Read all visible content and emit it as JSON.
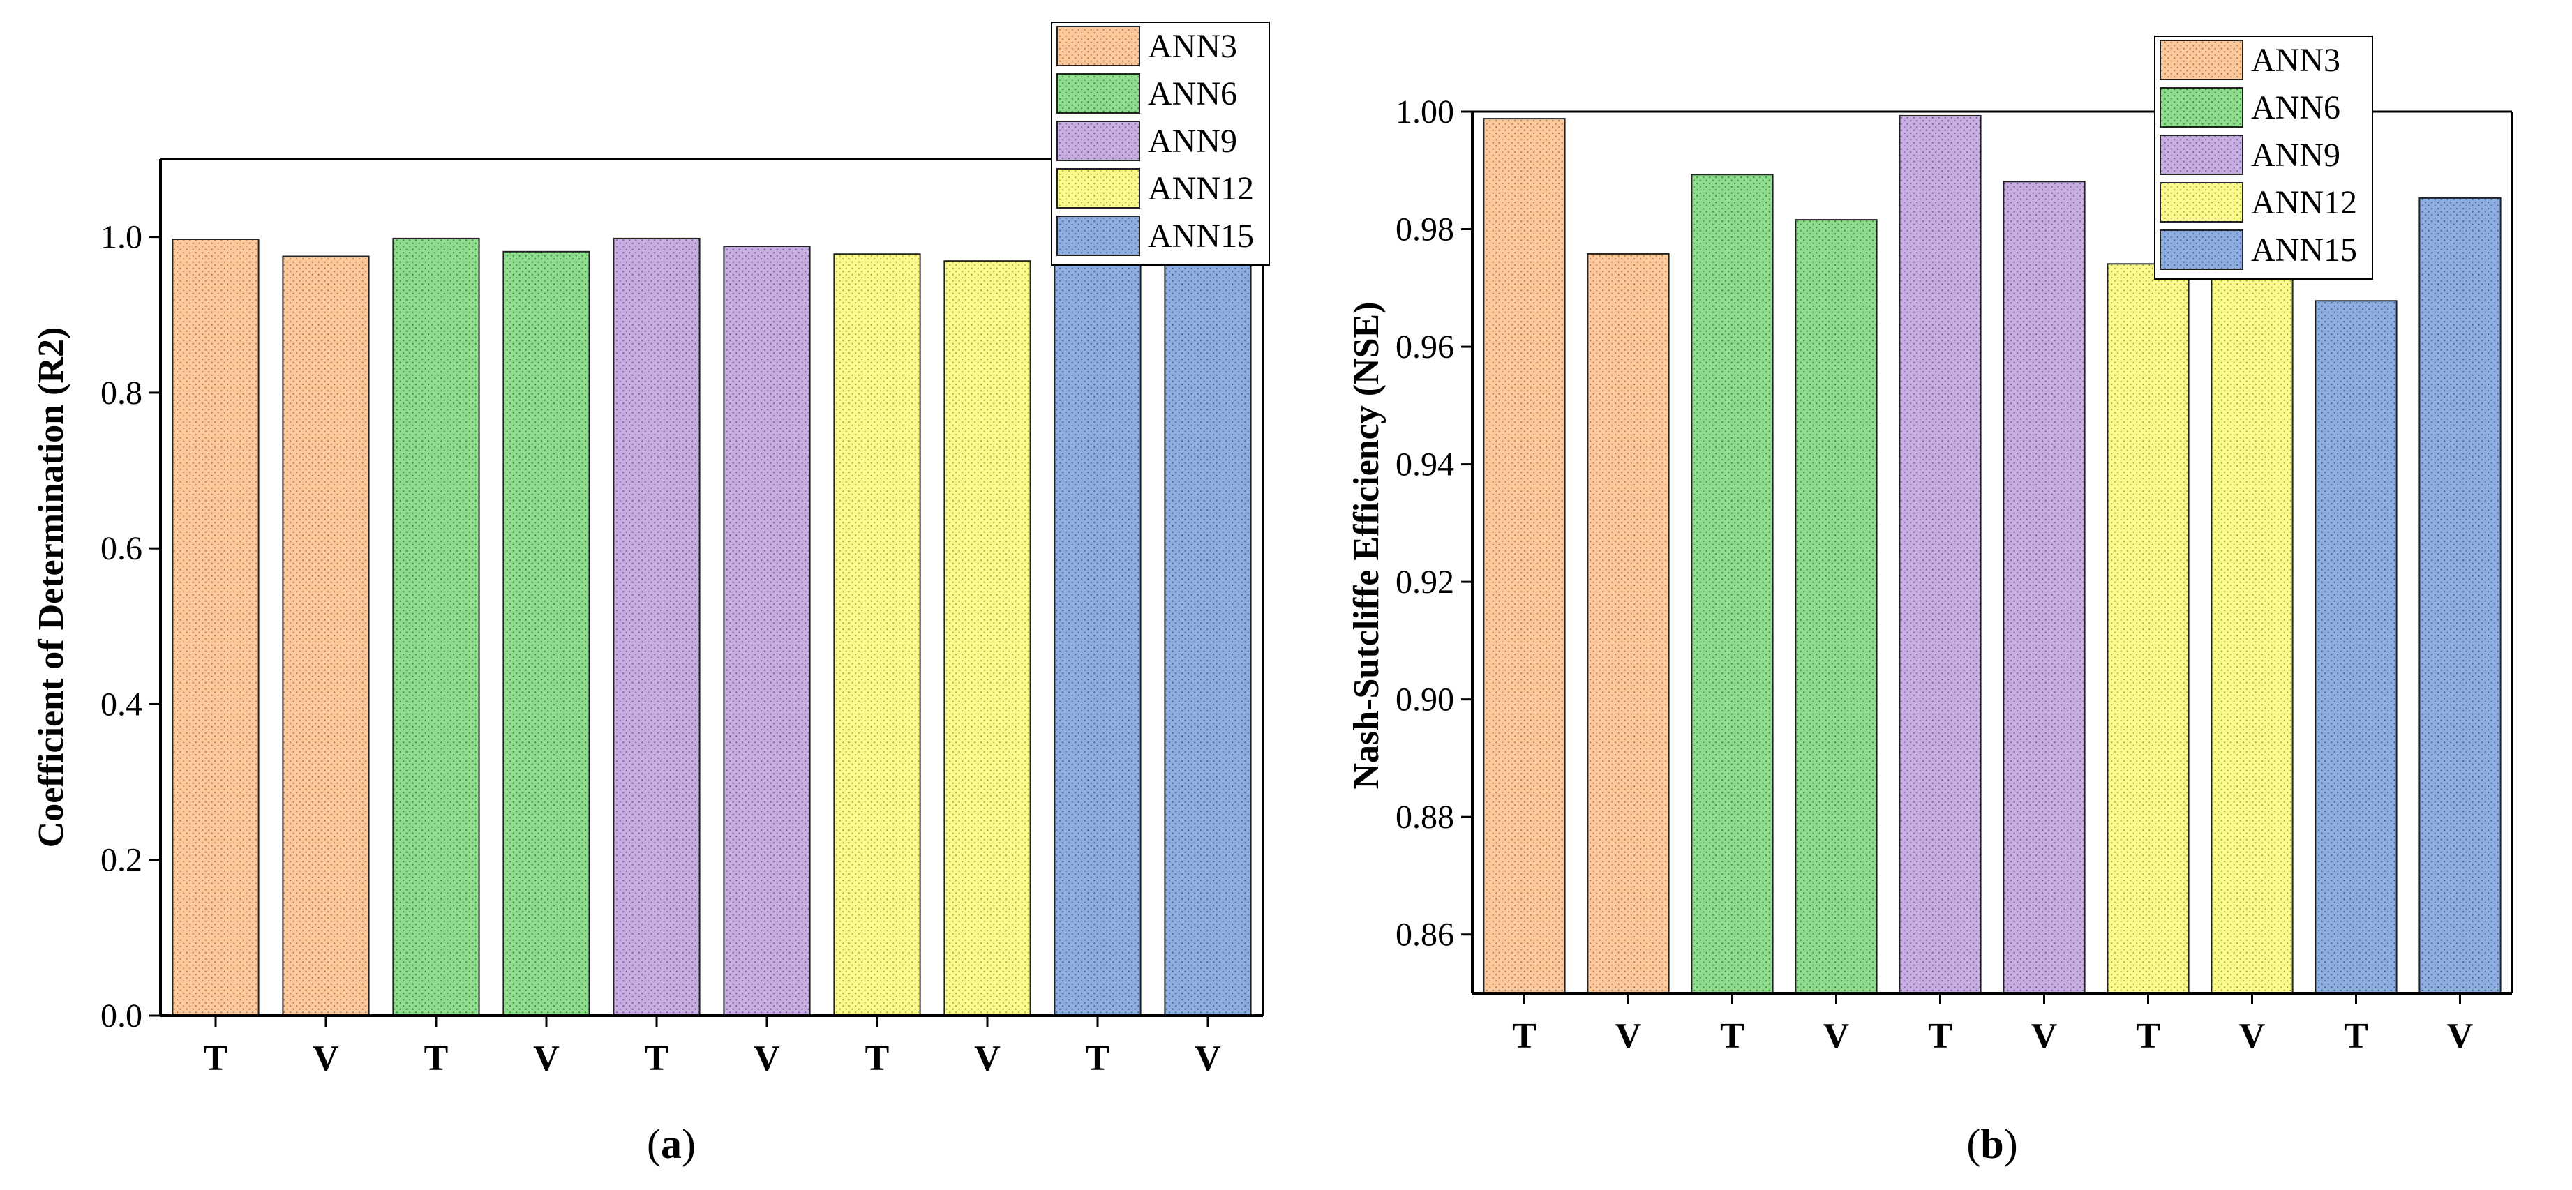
{
  "patterns": {
    "ANN3": {
      "fill": "#fbc99c",
      "dot": "#b07850"
    },
    "ANN6": {
      "fill": "#8fdc8f",
      "dot": "#3b8a3b"
    },
    "ANN9": {
      "fill": "#c6aee0",
      "dot": "#7a5c9c"
    },
    "ANN12": {
      "fill": "#fbfb8c",
      "dot": "#a8a840"
    },
    "ANN15": {
      "fill": "#8eaee0",
      "dot": "#44609c"
    }
  },
  "legend": [
    "ANN3",
    "ANN6",
    "ANN9",
    "ANN12",
    "ANN15"
  ],
  "chart_data": [
    {
      "type": "bar",
      "panel": "a",
      "caption_letter": "a",
      "categories": [
        "T",
        "V",
        "T",
        "V",
        "T",
        "V",
        "T",
        "V",
        "T",
        "V"
      ],
      "groups": [
        "ANN3",
        "ANN3",
        "ANN6",
        "ANN6",
        "ANN9",
        "ANN9",
        "ANN12",
        "ANN12",
        "ANN15",
        "ANN15"
      ],
      "values": [
        0.997,
        0.975,
        0.998,
        0.981,
        0.998,
        0.988,
        0.978,
        0.969,
        0.979,
        0.969
      ],
      "ylabel": "Coefficient of Determination (R2)",
      "xlabel": "",
      "ylim": [
        0,
        1.1
      ],
      "yticks": [
        "0.0",
        "0.2",
        "0.4",
        "0.6",
        "0.8",
        "1.0"
      ],
      "ytick_values": [
        0,
        0.2,
        0.4,
        0.6,
        0.8,
        1.0
      ],
      "legend_position": "top-right"
    },
    {
      "type": "bar",
      "panel": "b",
      "caption_letter": "b",
      "categories": [
        "T",
        "V",
        "T",
        "V",
        "T",
        "V",
        "T",
        "V",
        "T",
        "V"
      ],
      "groups": [
        "ANN3",
        "ANN3",
        "ANN6",
        "ANN6",
        "ANN9",
        "ANN9",
        "ANN12",
        "ANN12",
        "ANN15",
        "ANN15"
      ],
      "values": [
        0.9988,
        0.9758,
        0.9893,
        0.9816,
        0.9993,
        0.9881,
        0.9741,
        0.9738,
        0.9678,
        0.9853
      ],
      "ylabel": "Nash-Sutcliffe Efficiency (NSE)",
      "xlabel": "",
      "ylim": [
        0.85,
        1.0
      ],
      "yticks": [
        "0.86",
        "0.88",
        "0.90",
        "0.92",
        "0.94",
        "0.96",
        "0.98",
        "1.00"
      ],
      "ytick_values": [
        0.86,
        0.88,
        0.9,
        0.92,
        0.94,
        0.96,
        0.98,
        1.0
      ],
      "legend_position": "top-right"
    }
  ]
}
